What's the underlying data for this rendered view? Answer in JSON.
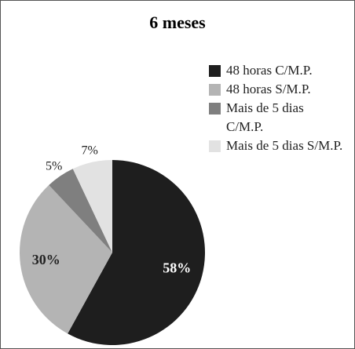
{
  "chart_data": {
    "type": "pie",
    "title": "6 meses",
    "categories": [
      "48 horas C/M.P.",
      "48 horas S/M.P.",
      "Mais de 5 dias C/M.P.",
      "Mais de 5 dias S/M.P."
    ],
    "values": [
      58,
      30,
      5,
      7
    ],
    "value_labels": [
      "58%",
      "30%",
      "5%",
      "7%"
    ],
    "colors": [
      "#1e1e1e",
      "#b4b4b4",
      "#7f7f7f",
      "#e2e2e2"
    ],
    "legend": "right"
  }
}
